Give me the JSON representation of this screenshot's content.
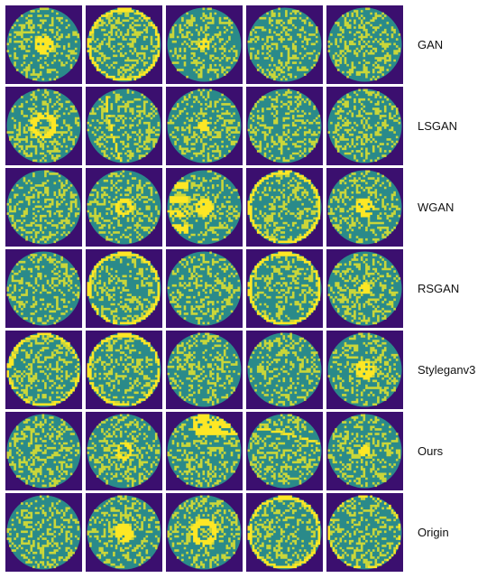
{
  "colors": {
    "background": "#3b0f6f",
    "field": "#2a8a8a",
    "speckle": "#c9d63a",
    "defect": "#fde725",
    "separator": "#ffffff"
  },
  "rows": [
    {
      "label": "GAN",
      "wafers": [
        {
          "pattern": "center"
        },
        {
          "pattern": "edge-ring"
        },
        {
          "pattern": "center-small"
        },
        {
          "pattern": "none"
        },
        {
          "pattern": "none"
        }
      ]
    },
    {
      "label": "LSGAN",
      "wafers": [
        {
          "pattern": "donut"
        },
        {
          "pattern": "scratch"
        },
        {
          "pattern": "center-small"
        },
        {
          "pattern": "none"
        },
        {
          "pattern": "none"
        }
      ]
    },
    {
      "label": "WGAN",
      "wafers": [
        {
          "pattern": "none"
        },
        {
          "pattern": "donut-small"
        },
        {
          "pattern": "edge-loc-center"
        },
        {
          "pattern": "edge-ring"
        },
        {
          "pattern": "center"
        }
      ]
    },
    {
      "label": "RSGAN",
      "wafers": [
        {
          "pattern": "none"
        },
        {
          "pattern": "edge-ring"
        },
        {
          "pattern": "none"
        },
        {
          "pattern": "edge-ring"
        },
        {
          "pattern": "center-small"
        }
      ]
    },
    {
      "label": "Styleganv3",
      "wafers": [
        {
          "pattern": "edge-ring-scratch"
        },
        {
          "pattern": "edge-ring"
        },
        {
          "pattern": "none"
        },
        {
          "pattern": "none"
        },
        {
          "pattern": "center"
        }
      ]
    },
    {
      "label": "Ours",
      "wafers": [
        {
          "pattern": "none"
        },
        {
          "pattern": "donut-small"
        },
        {
          "pattern": "edge-loc-top"
        },
        {
          "pattern": "scratch-top"
        },
        {
          "pattern": "center-small"
        }
      ]
    },
    {
      "label": "Origin",
      "wafers": [
        {
          "pattern": "none"
        },
        {
          "pattern": "center"
        },
        {
          "pattern": "donut"
        },
        {
          "pattern": "edge-ring"
        },
        {
          "pattern": "edge-ring-thin"
        }
      ]
    }
  ]
}
